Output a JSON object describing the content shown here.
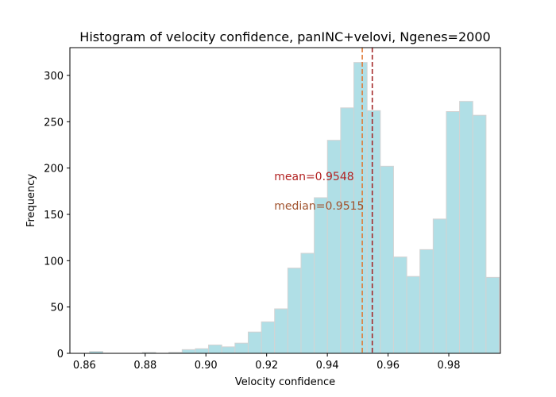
{
  "chart_data": {
    "type": "bar",
    "title": "Histogram of velocity confidence, panINC+velovi, Ngenes=2000",
    "xlabel": "Velocity confidence",
    "ylabel": "Frequency",
    "xlim": [
      0.8552,
      0.997
    ],
    "ylim": [
      0,
      330
    ],
    "xticks": [
      0.86,
      0.88,
      0.9,
      0.92,
      0.94,
      0.96,
      0.98
    ],
    "xtick_labels": [
      "0.86",
      "0.88",
      "0.90",
      "0.92",
      "0.94",
      "0.96",
      "0.98"
    ],
    "yticks": [
      0,
      50,
      100,
      150,
      200,
      250,
      300
    ],
    "ytick_labels": [
      "0",
      "50",
      "100",
      "150",
      "200",
      "250",
      "300"
    ],
    "bin_start": 0.8617,
    "bin_width": 0.004352,
    "values": [
      2,
      0,
      0,
      0,
      1,
      0,
      1,
      4,
      5,
      9,
      7,
      11,
      23,
      34,
      48,
      92,
      108,
      168,
      230,
      265,
      314,
      262,
      202,
      104,
      83,
      112,
      145,
      261,
      272,
      257,
      82
    ],
    "bar_color": "#b0dfe6",
    "bar_edge_color": "#d3d3d3",
    "grid": false,
    "lines": [
      {
        "name": "mean",
        "x": 0.9548,
        "color": "#a52a2a"
      },
      {
        "name": "median",
        "x": 0.9515,
        "color": "#e07b39"
      }
    ],
    "annotations": [
      {
        "text": "mean=0.9548",
        "x": 0.9225,
        "y": 187,
        "color": "#b22222"
      },
      {
        "text": "median=0.9515",
        "x": 0.9225,
        "y": 155,
        "color": "#a0522d"
      }
    ]
  }
}
